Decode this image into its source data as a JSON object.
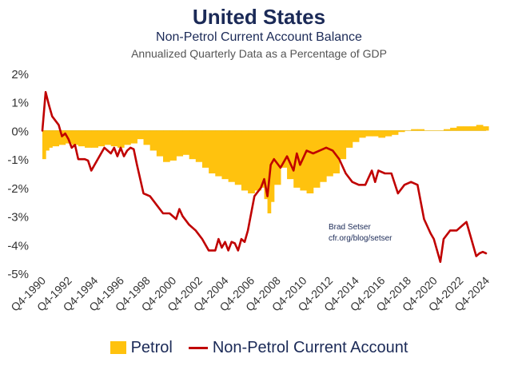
{
  "chart_data": {
    "type": "area+line",
    "title": "United States",
    "subtitle": "Non-Petrol Current Account Balance",
    "subtitle2": "Annualized Quarterly Data as a Percentage of GDP",
    "ylabel": "",
    "xlabel": "",
    "ylim": [
      -5,
      2
    ],
    "yticks": [
      "2%",
      "1%",
      "0%",
      "-1%",
      "-2%",
      "-3%",
      "-4%",
      "-5%"
    ],
    "ytick_values": [
      2,
      1,
      0,
      -1,
      -2,
      -3,
      -4,
      -5
    ],
    "x_start": 1990.75,
    "x_end": 2024.75,
    "xticks": [
      "Q4-1990",
      "Q4-1992",
      "Q4-1994",
      "Q4-1996",
      "Q4-1998",
      "Q4-2000",
      "Q4-2002",
      "Q4-2004",
      "Q4-2006",
      "Q4-2008",
      "Q4-2010",
      "Q4-2012",
      "Q4-2014",
      "Q4-2016",
      "Q4-2018",
      "Q4-2020",
      "Q4-2022",
      "Q4-2024"
    ],
    "xtick_values": [
      1990.75,
      1992.75,
      1994.75,
      1996.75,
      1998.75,
      2000.75,
      2002.75,
      2004.75,
      2006.75,
      2008.75,
      2010.75,
      2012.75,
      2014.75,
      2016.75,
      2018.75,
      2020.75,
      2022.75,
      2024.75
    ],
    "series": [
      {
        "name": "Petrol",
        "kind": "area",
        "color": "#ffc20e",
        "x": [
          1990.75,
          1991.0,
          1991.25,
          1991.5,
          1992.0,
          1992.5,
          1993.0,
          1993.5,
          1994.0,
          1994.5,
          1995.0,
          1995.5,
          1996.0,
          1996.5,
          1997.0,
          1997.5,
          1998.0,
          1998.5,
          1999.0,
          1999.5,
          2000.0,
          2000.5,
          2001.0,
          2001.5,
          2002.0,
          2002.5,
          2003.0,
          2003.5,
          2004.0,
          2004.5,
          2005.0,
          2005.5,
          2006.0,
          2006.5,
          2007.0,
          2007.5,
          2007.75,
          2008.0,
          2008.25,
          2008.5,
          2009.0,
          2009.5,
          2010.0,
          2010.5,
          2011.0,
          2011.5,
          2012.0,
          2012.5,
          2013.0,
          2013.5,
          2014.0,
          2014.5,
          2015.0,
          2015.5,
          2016.0,
          2016.5,
          2017.0,
          2017.5,
          2018.0,
          2018.5,
          2019.0,
          2019.5,
          2020.0,
          2020.5,
          2021.0,
          2021.5,
          2022.0,
          2022.5,
          2023.0,
          2023.5,
          2024.0,
          2024.5,
          2024.75
        ],
        "values": [
          -1.0,
          -0.7,
          -0.6,
          -0.55,
          -0.5,
          -0.45,
          -0.5,
          -0.55,
          -0.6,
          -0.6,
          -0.55,
          -0.5,
          -0.55,
          -0.6,
          -0.5,
          -0.45,
          -0.3,
          -0.5,
          -0.7,
          -0.9,
          -1.1,
          -1.05,
          -0.9,
          -0.85,
          -1.0,
          -1.1,
          -1.3,
          -1.5,
          -1.6,
          -1.7,
          -1.8,
          -1.9,
          -2.1,
          -2.2,
          -2.1,
          -2.0,
          -2.4,
          -2.9,
          -2.5,
          -1.9,
          -1.3,
          -1.7,
          -2.0,
          -2.1,
          -2.2,
          -2.0,
          -1.8,
          -1.6,
          -1.5,
          -1.0,
          -0.6,
          -0.4,
          -0.25,
          -0.2,
          -0.2,
          -0.25,
          -0.2,
          -0.15,
          -0.05,
          0.0,
          0.05,
          0.05,
          0.0,
          0.0,
          0.0,
          0.05,
          0.1,
          0.15,
          0.15,
          0.15,
          0.2,
          0.15,
          0.15
        ]
      },
      {
        "name": "Non-Petrol Current Account",
        "kind": "line",
        "color": "#c00000",
        "x": [
          1990.75,
          1991.0,
          1991.25,
          1991.5,
          1992.0,
          1992.25,
          1992.5,
          1992.75,
          1993.0,
          1993.25,
          1993.5,
          1994.0,
          1994.25,
          1994.5,
          1995.0,
          1995.5,
          1996.0,
          1996.25,
          1996.5,
          1996.75,
          1997.0,
          1997.25,
          1997.5,
          1997.75,
          1998.0,
          1998.5,
          1999.0,
          1999.5,
          2000.0,
          2000.5,
          2001.0,
          2001.25,
          2001.5,
          2002.0,
          2002.5,
          2003.0,
          2003.5,
          2004.0,
          2004.25,
          2004.5,
          2004.75,
          2005.0,
          2005.25,
          2005.5,
          2005.75,
          2006.0,
          2006.25,
          2006.5,
          2007.0,
          2007.5,
          2007.75,
          2008.0,
          2008.25,
          2008.5,
          2009.0,
          2009.5,
          2010.0,
          2010.25,
          2010.5,
          2011.0,
          2011.5,
          2012.0,
          2012.5,
          2013.0,
          2013.5,
          2014.0,
          2014.5,
          2015.0,
          2015.5,
          2016.0,
          2016.25,
          2016.5,
          2017.0,
          2017.5,
          2018.0,
          2018.5,
          2019.0,
          2019.5,
          2020.0,
          2020.5,
          2020.75,
          2021.0,
          2021.25,
          2021.5,
          2022.0,
          2022.5,
          2023.0,
          2023.25,
          2023.5,
          2024.0,
          2024.25,
          2024.5,
          2024.75
        ],
        "values": [
          0.0,
          1.35,
          0.9,
          0.5,
          0.2,
          -0.2,
          -0.1,
          -0.3,
          -0.6,
          -0.5,
          -1.0,
          -1.0,
          -1.05,
          -1.4,
          -1.0,
          -0.6,
          -0.8,
          -0.6,
          -0.9,
          -0.6,
          -0.9,
          -0.7,
          -0.6,
          -0.65,
          -1.2,
          -2.2,
          -2.3,
          -2.6,
          -2.9,
          -2.9,
          -3.1,
          -2.75,
          -3.0,
          -3.3,
          -3.5,
          -3.8,
          -4.2,
          -4.2,
          -3.8,
          -4.1,
          -3.9,
          -4.2,
          -3.9,
          -3.95,
          -4.2,
          -3.8,
          -3.9,
          -3.5,
          -2.3,
          -2.0,
          -1.7,
          -2.3,
          -1.2,
          -1.0,
          -1.3,
          -0.9,
          -1.4,
          -0.8,
          -1.2,
          -0.7,
          -0.8,
          -0.7,
          -0.6,
          -0.7,
          -1.0,
          -1.5,
          -1.8,
          -1.9,
          -1.9,
          -1.4,
          -1.8,
          -1.4,
          -1.5,
          -1.5,
          -2.2,
          -1.9,
          -1.8,
          -1.9,
          -3.1,
          -3.6,
          -3.8,
          -4.2,
          -4.6,
          -3.8,
          -3.5,
          -3.5,
          -3.3,
          -3.2,
          -3.6,
          -4.4,
          -4.3,
          -4.25,
          -4.3
        ]
      }
    ],
    "annotation": {
      "line1": "Brad Setser",
      "line2": "cfr.org/blog/setser",
      "anchor_x": 2008.75,
      "anchor_y": -3.3
    },
    "legend": [
      {
        "label": "Petrol",
        "marker": "box"
      },
      {
        "label": "Non-Petrol Current Account",
        "marker": "line"
      }
    ],
    "legend_position": "bottom",
    "grid": false
  }
}
